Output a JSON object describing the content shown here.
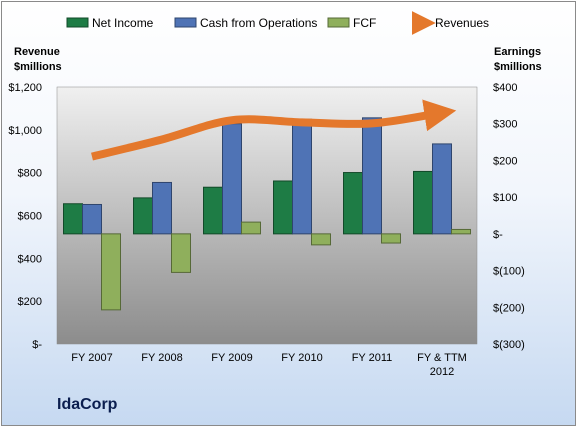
{
  "chart_data": {
    "type": "bar",
    "title": "IdaCorp",
    "categories": [
      "FY 2007",
      "FY 2008",
      "FY 2009",
      "FY 2010",
      "FY 2011",
      "FY & TTM 2012"
    ],
    "left_axis": {
      "label": "Revenue $millions",
      "ticks": [
        "$-",
        "$200",
        "$400",
        "$600",
        "$800",
        "$1,000",
        "$1,200"
      ],
      "ylim": [
        0,
        1200
      ]
    },
    "right_axis": {
      "label": "Earnings $millions",
      "ticks": [
        "$(300)",
        "$(200)",
        "$(100)",
        "$-",
        "$100",
        "$200",
        "$300",
        "$400"
      ],
      "ylim": [
        -300,
        400
      ]
    },
    "series": [
      {
        "name": "Net Income",
        "type": "bar",
        "axis": "right",
        "color": "#1e7c45",
        "values": [
          82,
          98,
          127,
          144,
          167,
          170
        ]
      },
      {
        "name": "Cash from Operations",
        "type": "bar",
        "axis": "right",
        "color": "#4f73b5",
        "values": [
          80,
          140,
          300,
          312,
          316,
          245
        ]
      },
      {
        "name": "FCF",
        "type": "bar",
        "axis": "right",
        "color": "#8faf5c",
        "values": [
          -207,
          -105,
          32,
          -30,
          -25,
          12
        ]
      },
      {
        "name": "Revenues",
        "type": "line",
        "axis": "left",
        "color": "#e4782c",
        "values": [
          875,
          955,
          1045,
          1035,
          1030,
          1080
        ]
      }
    ],
    "legend": "top",
    "grid": false
  }
}
